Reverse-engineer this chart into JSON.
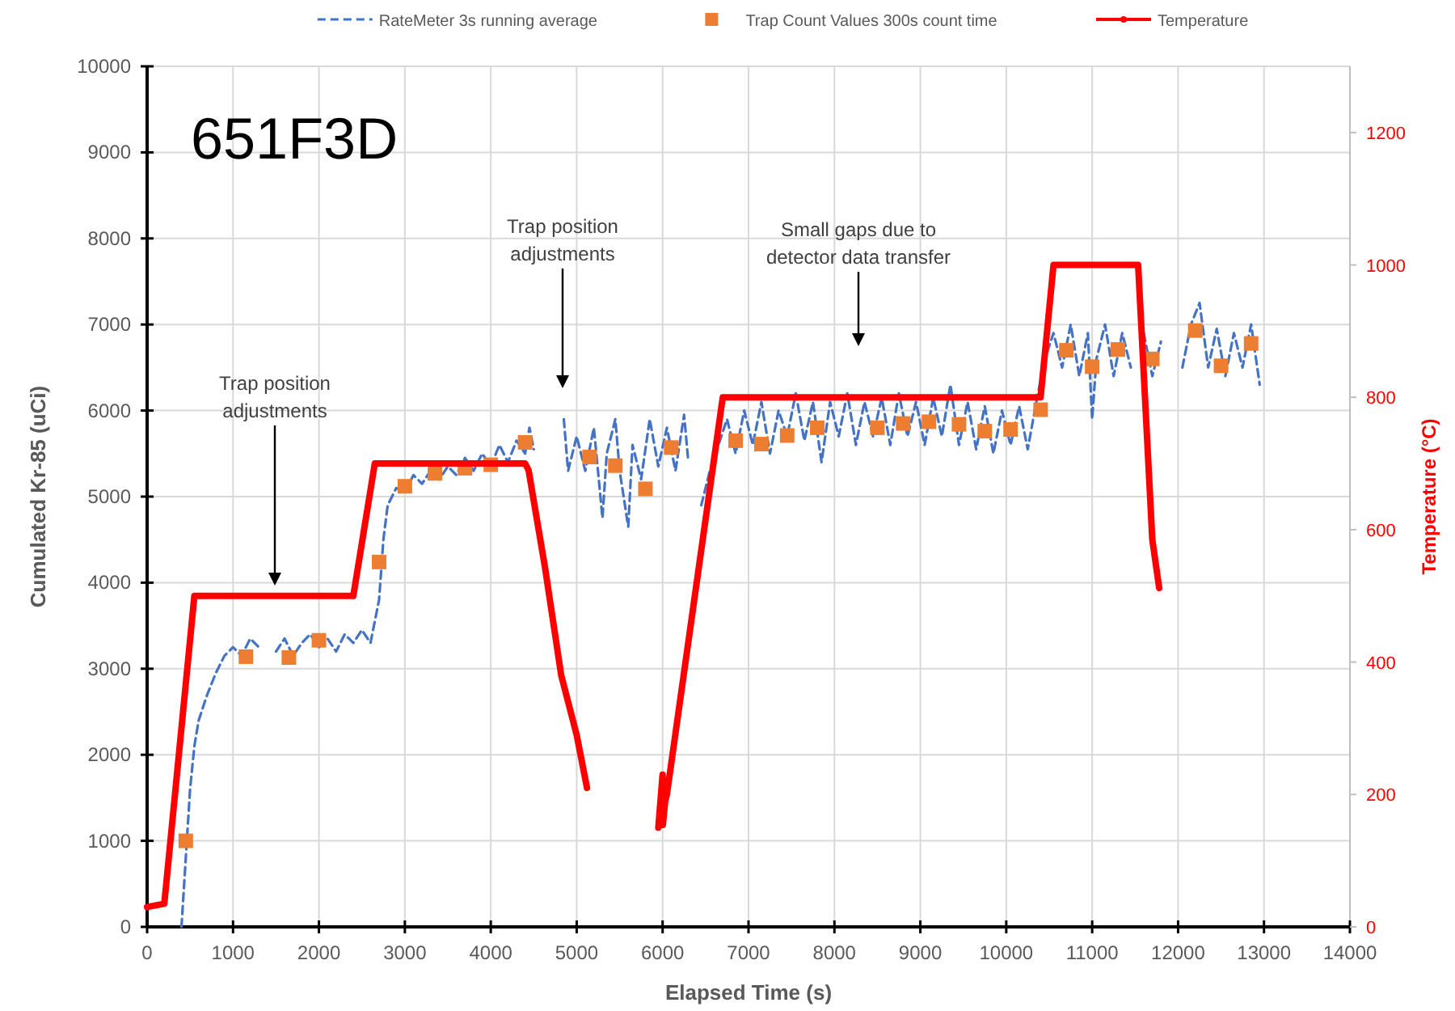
{
  "chart_data": {
    "type": "line",
    "title": "651F3D",
    "xlabel": "Elapsed Time (s)",
    "ylabel": "Cumulated Kr-85 (uCi)",
    "y2label": "Temperature (°C)",
    "xlim": [
      0,
      14000
    ],
    "xticks": [
      0,
      1000,
      2000,
      3000,
      4000,
      5000,
      6000,
      7000,
      8000,
      9000,
      10000,
      11000,
      12000,
      13000,
      14000
    ],
    "ylim": [
      0,
      10000
    ],
    "yticks": [
      0,
      1000,
      2000,
      3000,
      4000,
      5000,
      6000,
      7000,
      8000,
      9000,
      10000
    ],
    "y2lim": [
      0,
      1300
    ],
    "y2ticks": [
      0,
      200,
      400,
      600,
      800,
      1000,
      1200
    ],
    "grid": true,
    "legend": "top",
    "annotations": [
      "Trap position adjustments",
      "Trap position adjustments",
      "Small gaps due to detector data transfer"
    ],
    "series": [
      {
        "name": "RateMeter 3s running average",
        "color": "#4472c4",
        "line_style": "dashed",
        "x": [
          400,
          450,
          500,
          550,
          600,
          700,
          800,
          900,
          1000,
          1100,
          1200,
          1300,
          1400,
          1500,
          1600,
          1700,
          1800,
          1900,
          2000,
          2100,
          2200,
          2300,
          2400,
          2500,
          2600,
          2700,
          2750,
          2800,
          2900,
          3000,
          3100,
          3200,
          3300,
          3400,
          3500,
          3600,
          3700,
          3800,
          3900,
          4000,
          4100,
          4200,
          4300,
          4400,
          4450,
          4500,
          4700,
          4850,
          4900,
          5000,
          5100,
          5200,
          5300,
          5350,
          5450,
          5500,
          5600,
          5650,
          5750,
          5850,
          5950,
          6050,
          6150,
          6250,
          6300,
          6350,
          6450,
          6550,
          6650,
          6750,
          6850,
          6950,
          7050,
          7150,
          7250,
          7350,
          7450,
          7550,
          7650,
          7750,
          7850,
          7950,
          8050,
          8150,
          8250,
          8350,
          8450,
          8550,
          8650,
          8750,
          8850,
          8950,
          9050,
          9150,
          9250,
          9350,
          9450,
          9550,
          9650,
          9750,
          9850,
          9950,
          10050,
          10150,
          10250,
          10350,
          10450,
          10550,
          10650,
          10750,
          10850,
          10950,
          11000,
          11050,
          11150,
          11250,
          11350,
          11450,
          11500,
          11600,
          11700,
          11800,
          11950,
          12050,
          12150,
          12250,
          12350,
          12450,
          12550,
          12650,
          12750,
          12850,
          12950
        ],
        "values": [
          0,
          800,
          1600,
          2100,
          2400,
          2700,
          2950,
          3150,
          3250,
          3150,
          3350,
          3250,
          null,
          3200,
          3350,
          3150,
          3300,
          3400,
          3250,
          3350,
          3200,
          3400,
          3300,
          3450,
          3300,
          3800,
          4500,
          4900,
          5100,
          5050,
          5250,
          5150,
          5300,
          5200,
          5350,
          5250,
          5450,
          5300,
          5500,
          5350,
          5600,
          5400,
          5650,
          5500,
          5800,
          5550,
          null,
          5900,
          5300,
          5700,
          5300,
          5800,
          4750,
          5500,
          5900,
          5300,
          4650,
          5600,
          5200,
          5900,
          5350,
          5800,
          5300,
          5950,
          5400,
          null,
          4900,
          5300,
          5600,
          5900,
          5500,
          6000,
          5600,
          6100,
          5500,
          6000,
          5700,
          6200,
          5650,
          6100,
          5400,
          6100,
          5700,
          6200,
          5600,
          6100,
          5700,
          6150,
          5600,
          6200,
          5700,
          6100,
          5600,
          6150,
          5700,
          6300,
          5600,
          6100,
          5550,
          6050,
          5500,
          6000,
          5600,
          6050,
          5550,
          6100,
          6600,
          6900,
          6500,
          7000,
          6400,
          6900,
          5900,
          6600,
          7000,
          6400,
          6900,
          6500,
          null,
          6900,
          6400,
          6800,
          null,
          6500,
          7000,
          7250,
          6500,
          6950,
          6400,
          6900,
          6500,
          7000,
          6300
        ]
      },
      {
        "name": "Trap Count Values 300s count time",
        "type": "scatter",
        "color": "#ed7d31",
        "marker": "square",
        "x": [
          450,
          1150,
          1650,
          2000,
          2700,
          3000,
          3350,
          3700,
          4000,
          4400,
          5150,
          5450,
          5800,
          6100,
          6850,
          7150,
          7450,
          7800,
          8500,
          8800,
          9100,
          9450,
          9750,
          10050,
          10400,
          10700,
          11000,
          11300,
          11700,
          12200,
          12500,
          12850
        ],
        "values": [
          1000,
          3140,
          3130,
          3330,
          4240,
          5120,
          5270,
          5330,
          5370,
          5630,
          5460,
          5360,
          5090,
          5570,
          5650,
          5610,
          5710,
          5800,
          5800,
          5850,
          5870,
          5840,
          5760,
          5780,
          6010,
          6700,
          6510,
          6710,
          6600,
          6930,
          6520,
          6780
        ]
      },
      {
        "name": "Temperature",
        "color": "#ff0000",
        "axis": "y2",
        "line_style": "solid",
        "x": [
          0,
          200,
          550,
          2400,
          2650,
          4400,
          4440,
          4630,
          4820,
          5000,
          5120,
          5300,
          5950,
          6000,
          6003,
          6030,
          6050,
          6700,
          10400,
          10550,
          11500,
          11535,
          11700,
          11780
        ],
        "values": [
          30,
          35,
          500,
          500,
          700,
          700,
          690,
          544,
          380,
          290,
          210,
          null,
          150,
          230,
          154,
          190,
          200,
          800,
          800,
          1000,
          1000,
          1000,
          585,
          512
        ]
      }
    ]
  }
}
